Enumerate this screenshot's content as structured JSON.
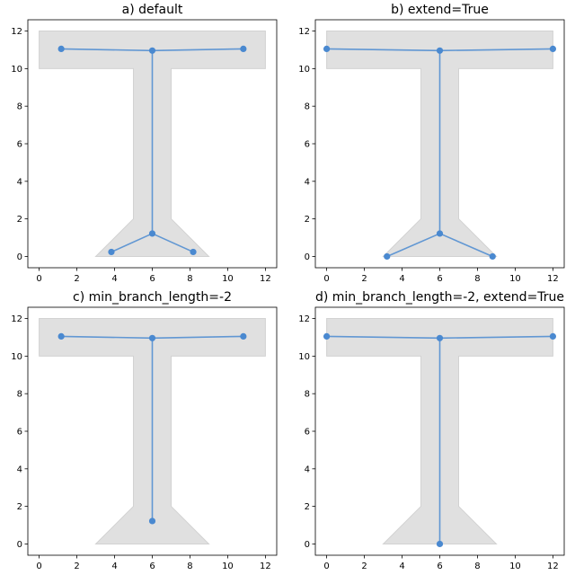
{
  "chart_data": [
    {
      "type": "scatter",
      "title": "a) default",
      "xlim": [
        -0.6,
        12.6
      ],
      "ylim": [
        -0.6,
        12.6
      ],
      "x_ticks": [
        0,
        2,
        4,
        6,
        8,
        10,
        12
      ],
      "y_ticks": [
        0,
        2,
        4,
        6,
        8,
        10,
        12
      ],
      "grid": false,
      "shape_polygon": [
        [
          0,
          10
        ],
        [
          0,
          12
        ],
        [
          12,
          12
        ],
        [
          12,
          10
        ],
        [
          7,
          10
        ],
        [
          7,
          2
        ],
        [
          9,
          0
        ],
        [
          3,
          0
        ],
        [
          5,
          2
        ],
        [
          5,
          10
        ]
      ],
      "shape_color": "#e0e0e0",
      "line_color": "#4a89d0",
      "segments": [
        [
          [
            1.17,
            11.05
          ],
          [
            6.0,
            10.96
          ]
        ],
        [
          [
            6.0,
            10.96
          ],
          [
            10.83,
            11.05
          ]
        ],
        [
          [
            6.0,
            10.96
          ],
          [
            6.0,
            1.22
          ]
        ],
        [
          [
            6.0,
            1.22
          ],
          [
            3.83,
            0.24
          ]
        ],
        [
          [
            6.0,
            1.22
          ],
          [
            8.17,
            0.24
          ]
        ]
      ],
      "points": [
        [
          1.17,
          11.05
        ],
        [
          6.0,
          10.96
        ],
        [
          10.83,
          11.05
        ],
        [
          6.0,
          1.22
        ],
        [
          3.83,
          0.24
        ],
        [
          8.17,
          0.24
        ]
      ]
    },
    {
      "type": "scatter",
      "title": "b) extend=True",
      "xlim": [
        -0.6,
        12.6
      ],
      "ylim": [
        -0.6,
        12.6
      ],
      "x_ticks": [
        0,
        2,
        4,
        6,
        8,
        10,
        12
      ],
      "y_ticks": [
        0,
        2,
        4,
        6,
        8,
        10,
        12
      ],
      "grid": false,
      "shape_polygon": [
        [
          0,
          10
        ],
        [
          0,
          12
        ],
        [
          12,
          12
        ],
        [
          12,
          10
        ],
        [
          7,
          10
        ],
        [
          7,
          2
        ],
        [
          9,
          0
        ],
        [
          3,
          0
        ],
        [
          5,
          2
        ],
        [
          5,
          10
        ]
      ],
      "shape_color": "#e0e0e0",
      "line_color": "#4a89d0",
      "segments": [
        [
          [
            0.0,
            11.05
          ],
          [
            6.0,
            10.96
          ]
        ],
        [
          [
            6.0,
            10.96
          ],
          [
            12.0,
            11.05
          ]
        ],
        [
          [
            6.0,
            10.96
          ],
          [
            6.0,
            1.22
          ]
        ],
        [
          [
            6.0,
            1.22
          ],
          [
            3.2,
            0.0
          ]
        ],
        [
          [
            6.0,
            1.22
          ],
          [
            8.8,
            0.0
          ]
        ]
      ],
      "points": [
        [
          0.0,
          11.05
        ],
        [
          6.0,
          10.96
        ],
        [
          12.0,
          11.05
        ],
        [
          6.0,
          1.22
        ],
        [
          3.2,
          0.0
        ],
        [
          8.8,
          0.0
        ]
      ]
    },
    {
      "type": "scatter",
      "title": "c) min_branch_length=-2",
      "xlim": [
        -0.6,
        12.6
      ],
      "ylim": [
        -0.6,
        12.6
      ],
      "x_ticks": [
        0,
        2,
        4,
        6,
        8,
        10,
        12
      ],
      "y_ticks": [
        0,
        2,
        4,
        6,
        8,
        10,
        12
      ],
      "grid": false,
      "shape_polygon": [
        [
          0,
          10
        ],
        [
          0,
          12
        ],
        [
          12,
          12
        ],
        [
          12,
          10
        ],
        [
          7,
          10
        ],
        [
          7,
          2
        ],
        [
          9,
          0
        ],
        [
          3,
          0
        ],
        [
          5,
          2
        ],
        [
          5,
          10
        ]
      ],
      "shape_color": "#e0e0e0",
      "line_color": "#4a89d0",
      "segments": [
        [
          [
            1.17,
            11.05
          ],
          [
            6.0,
            10.96
          ]
        ],
        [
          [
            6.0,
            10.96
          ],
          [
            10.83,
            11.05
          ]
        ],
        [
          [
            6.0,
            10.96
          ],
          [
            6.0,
            1.22
          ]
        ]
      ],
      "points": [
        [
          1.17,
          11.05
        ],
        [
          6.0,
          10.96
        ],
        [
          10.83,
          11.05
        ],
        [
          6.0,
          1.22
        ]
      ]
    },
    {
      "type": "scatter",
      "title": "d) min_branch_length=-2, extend=True",
      "xlim": [
        -0.6,
        12.6
      ],
      "ylim": [
        -0.6,
        12.6
      ],
      "x_ticks": [
        0,
        2,
        4,
        6,
        8,
        10,
        12
      ],
      "y_ticks": [
        0,
        2,
        4,
        6,
        8,
        10,
        12
      ],
      "grid": false,
      "shape_polygon": [
        [
          0,
          10
        ],
        [
          0,
          12
        ],
        [
          12,
          12
        ],
        [
          12,
          10
        ],
        [
          7,
          10
        ],
        [
          7,
          2
        ],
        [
          9,
          0
        ],
        [
          3,
          0
        ],
        [
          5,
          2
        ],
        [
          5,
          10
        ]
      ],
      "shape_color": "#e0e0e0",
      "line_color": "#4a89d0",
      "segments": [
        [
          [
            0.0,
            11.05
          ],
          [
            6.0,
            10.96
          ]
        ],
        [
          [
            6.0,
            10.96
          ],
          [
            12.0,
            11.05
          ]
        ],
        [
          [
            6.0,
            10.96
          ],
          [
            6.0,
            0.0
          ]
        ]
      ],
      "points": [
        [
          0.0,
          11.05
        ],
        [
          6.0,
          10.96
        ],
        [
          12.0,
          11.05
        ],
        [
          6.0,
          0.0
        ]
      ]
    }
  ]
}
